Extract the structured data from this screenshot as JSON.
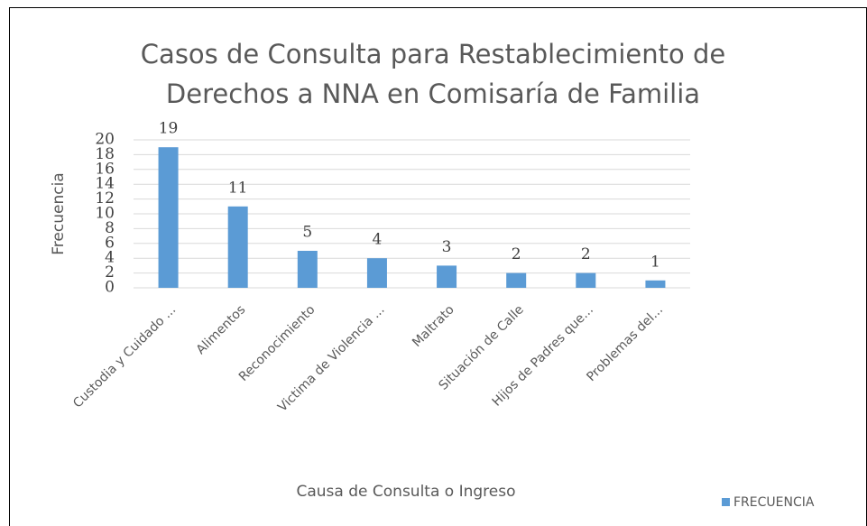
{
  "chart_data": {
    "type": "bar",
    "title": "Casos de Consulta para Restablecimiento de Derechos a NNA en Comisaría de Familia",
    "y_label": "Frecuencia",
    "x_label": "Causa de Consulta o Ingreso",
    "categories": [
      "Custodia y Cuidado ...",
      "Alimentos",
      "Reconocimiento",
      "Victima de Violencia ...",
      "Maltrato",
      "Situación de Calle",
      "Hijos de Padres que...",
      "Problemas del..."
    ],
    "series": [
      {
        "name": "FRECUENCIA",
        "color": "#5b9bd5",
        "values": [
          19,
          11,
          5,
          4,
          3,
          2,
          2,
          1
        ]
      }
    ],
    "ylim": [
      0,
      20
    ],
    "yticks": [
      0,
      2,
      4,
      6,
      8,
      10,
      12,
      14,
      16,
      18,
      20
    ],
    "grid": true,
    "legend": "bottom-right"
  }
}
